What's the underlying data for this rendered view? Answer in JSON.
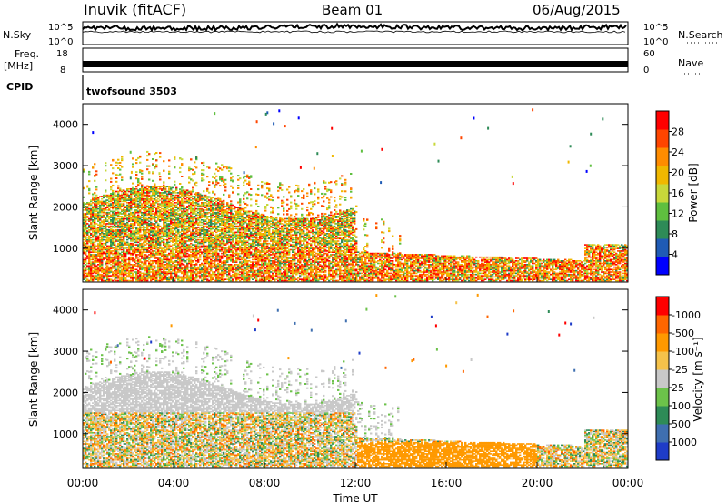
{
  "header": {
    "station": "Inuvik (fitACF)",
    "beam": "Beam 01",
    "date": "06/Aug/2015"
  },
  "top_panels": {
    "nsky_label": "N.Sky",
    "nsky_ticks": [
      "10^5",
      "10^0"
    ],
    "nsearch_label": "N.Search",
    "nsearch_ticks": [
      "10^5",
      "10^0"
    ],
    "freq_label": "Freq.",
    "freq_unit": "[MHz]",
    "freq_ticks": [
      "18",
      "8"
    ],
    "nave_label": "Nave",
    "nave_ticks": [
      "60",
      "0"
    ],
    "cpid_label": "CPID",
    "cpid_text": "twofsound 3503"
  },
  "chart_data": [
    {
      "type": "heatmap",
      "title": "",
      "ylabel": "Slant Range [km]",
      "xlabel": "",
      "x_range": [
        "00:00",
        "24:00"
      ],
      "ylim": [
        180,
        4500
      ],
      "y_ticks": [
        "1000",
        "2000",
        "3000",
        "4000"
      ],
      "x_ticks": [
        "00:00",
        "04:00",
        "08:00",
        "12:00",
        "16:00",
        "20:00",
        "00:00"
      ],
      "colorbar": {
        "label": "Power [dB]",
        "ticks": [
          "4",
          "8",
          "12",
          "16",
          "20",
          "24",
          "28"
        ],
        "colors": [
          "#0000ff",
          "#1f5bb5",
          "#2e8b57",
          "#5fbf3f",
          "#c8d83a",
          "#f0b800",
          "#ff8c00",
          "#ff4500",
          "#ff0000"
        ]
      }
    },
    {
      "type": "heatmap",
      "title": "",
      "ylabel": "Slant Range [km]",
      "xlabel": "Time UT",
      "x_range": [
        "00:00",
        "24:00"
      ],
      "ylim": [
        180,
        4500
      ],
      "y_ticks": [
        "1000",
        "2000",
        "3000",
        "4000"
      ],
      "x_ticks": [
        "00:00",
        "04:00",
        "08:00",
        "12:00",
        "16:00",
        "20:00",
        "00:00"
      ],
      "colorbar": {
        "label": "Velocity [m s⁻¹]",
        "ticks": [
          "1000",
          "500",
          "100",
          "25",
          "-25",
          "-100",
          "-500",
          "-1000"
        ],
        "colors": [
          "#1e3cc8",
          "#3f6fb0",
          "#2e8b57",
          "#6cc24a",
          "#c8c8c8",
          "#f5c24a",
          "#ff9900",
          "#ff6600",
          "#ff0000"
        ]
      }
    }
  ]
}
